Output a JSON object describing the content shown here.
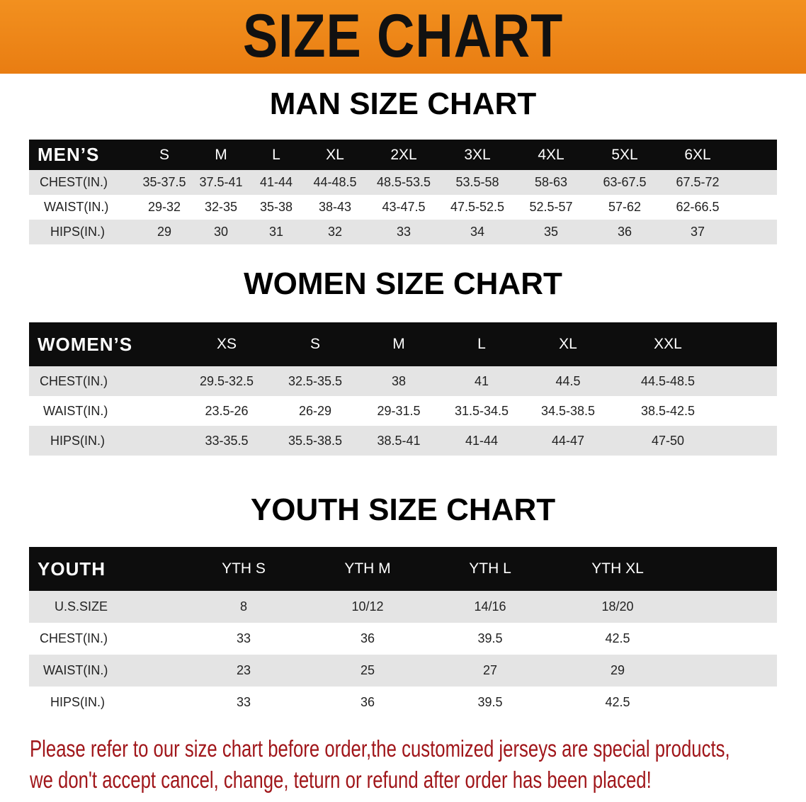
{
  "banner": {
    "title": "SIZE CHART"
  },
  "men": {
    "title": "MAN SIZE CHART",
    "header": [
      "MEN’S",
      "S",
      "M",
      "L",
      "XL",
      "2XL",
      "3XL",
      "4XL",
      "5XL",
      "6XL"
    ],
    "rows": [
      [
        "CHEST(IN.)",
        "35-37.5",
        "37.5-41",
        "41-44",
        "44-48.5",
        "48.5-53.5",
        "53.5-58",
        "58-63",
        "63-67.5",
        "67.5-72"
      ],
      [
        "WAIST(IN.)",
        "29-32",
        "32-35",
        "35-38",
        "38-43",
        "43-47.5",
        "47.5-52.5",
        "52.5-57",
        "57-62",
        "62-66.5"
      ],
      [
        "HIPS(IN.)",
        "29",
        "30",
        "31",
        "32",
        "33",
        "34",
        "35",
        "36",
        "37"
      ]
    ]
  },
  "women": {
    "title": "WOMEN SIZE CHART",
    "header": [
      "WOMEN’S",
      "XS",
      "S",
      "M",
      "L",
      "XL",
      "XXL"
    ],
    "rows": [
      [
        "CHEST(IN.)",
        "29.5-32.5",
        "32.5-35.5",
        "38",
        "41",
        "44.5",
        "44.5-48.5"
      ],
      [
        "WAIST(IN.)",
        "23.5-26",
        "26-29",
        "29-31.5",
        "31.5-34.5",
        "34.5-38.5",
        "38.5-42.5"
      ],
      [
        "HIPS(IN.)",
        "33-35.5",
        "35.5-38.5",
        "38.5-41",
        "41-44",
        "44-47",
        "47-50"
      ]
    ]
  },
  "youth": {
    "title": "YOUTH SIZE CHART",
    "header": [
      "YOUTH",
      "YTH S",
      "YTH M",
      "YTH L",
      "YTH XL"
    ],
    "rows": [
      [
        "U.S.SIZE",
        "8",
        "10/12",
        "14/16",
        "18/20"
      ],
      [
        "CHEST(IN.)",
        "33",
        "36",
        "39.5",
        "42.5"
      ],
      [
        "WAIST(IN.)",
        "23",
        "25",
        "27",
        "29"
      ],
      [
        "HIPS(IN.)",
        "33",
        "36",
        "39.5",
        "42.5"
      ]
    ]
  },
  "note": {
    "line1": "Please refer to our size chart before order,the customized jerseys are special products,",
    "line2": "we don't accept cancel, change, teturn or refund after order has been placed!"
  },
  "colors": {
    "banner": "#ee8719",
    "header_row": "#0d0d0d",
    "stripe": "#e4e4e4",
    "note": "#a0161a"
  }
}
